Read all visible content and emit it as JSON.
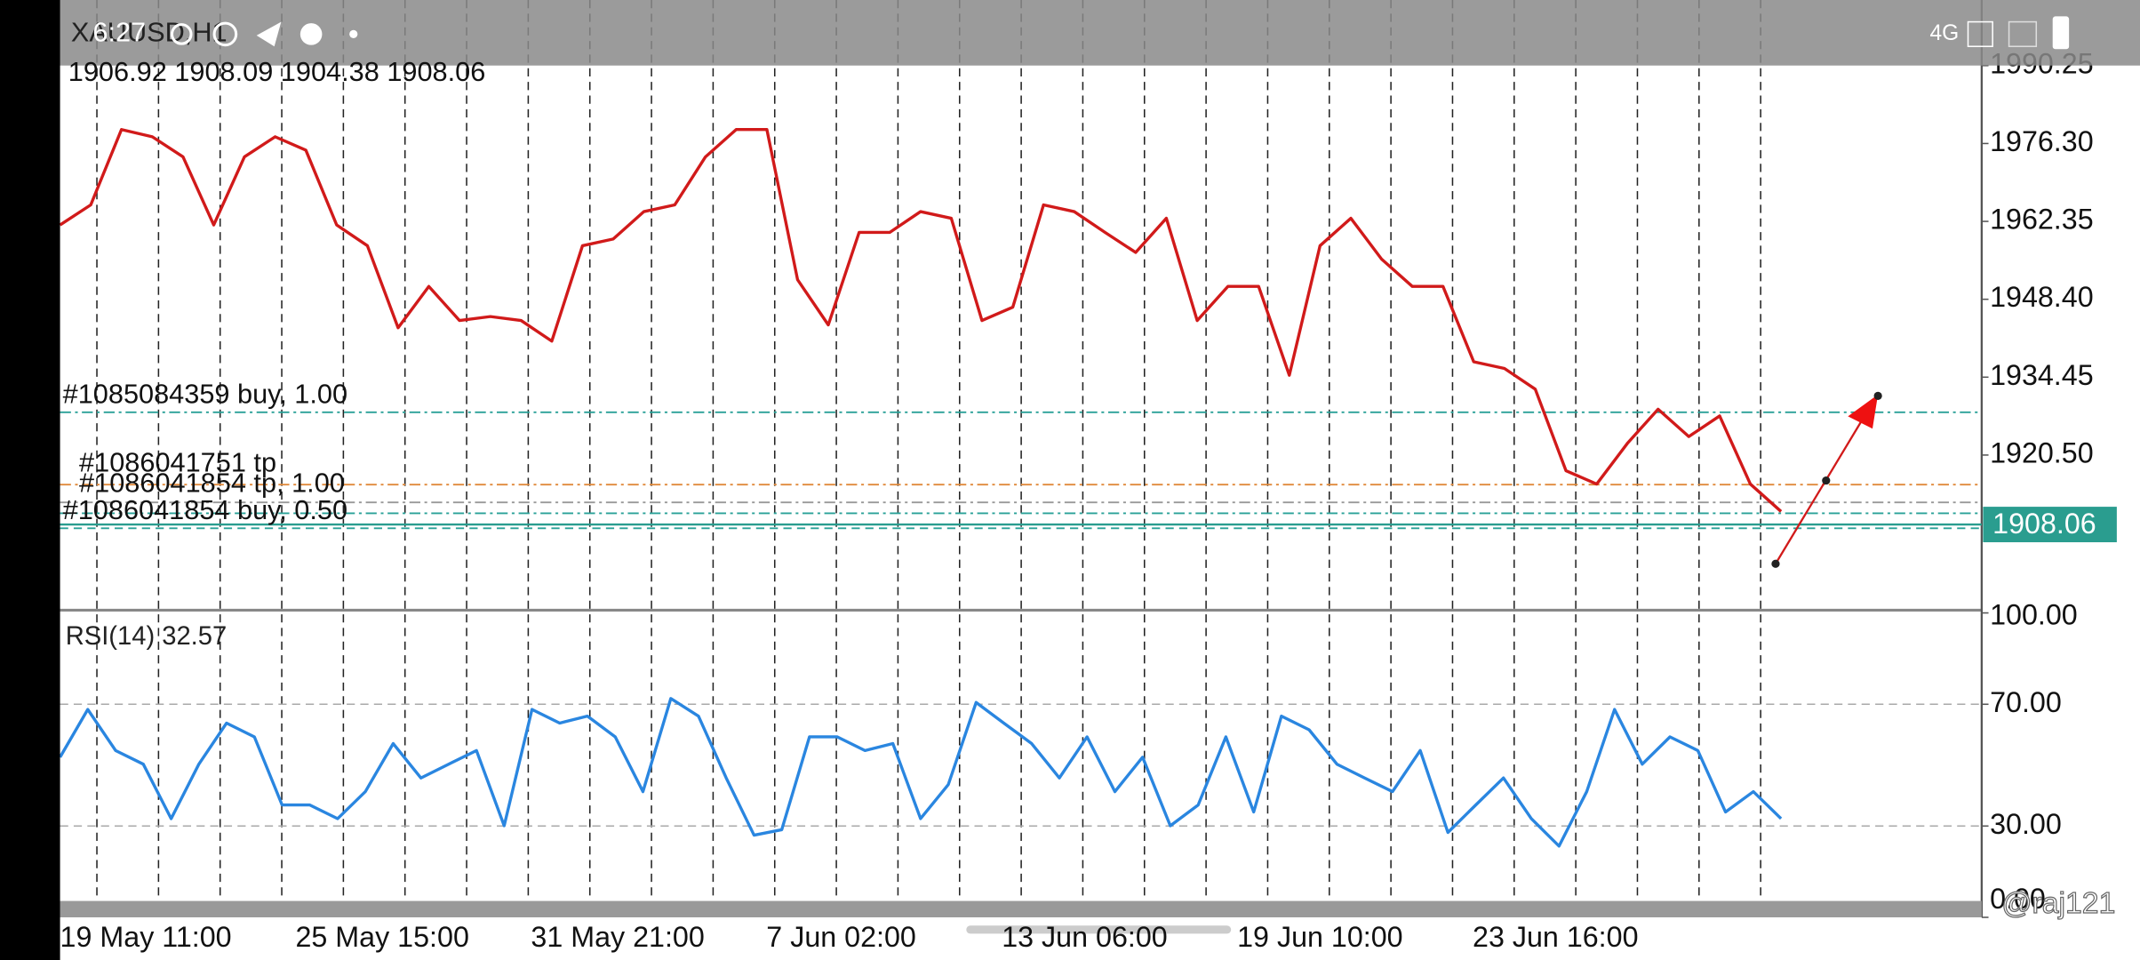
{
  "status_bar": {
    "time": "6:27",
    "network": "4G"
  },
  "header": {
    "symbol": "XAUUSD,H1",
    "ohlc": "1906.92 1908.09 1904.38 1908.06"
  },
  "orders": [
    "#1085084359 buy, 1.00",
    "#1086041751 tp",
    "#1086041854 tp, 1.00",
    "#1086041854 buy, 0.50"
  ],
  "watermark": "@raj121",
  "xticks": [
    "19 May 11:00",
    "25 May 15:00",
    "31 May 21:00",
    "7 Jun 02:00",
    "13 Jun 06:00",
    "19 Jun 10:00",
    "23 Jun 16:00"
  ],
  "chart_data": [
    {
      "type": "line",
      "current_price": 1908.06,
      "ylim": [
        1893.2,
        1991
      ],
      "yticks": [
        1990.25,
        {
          "value": 1976.3,
          "label": "1976.30"
        },
        1962.35,
        {
          "value": 1948.4,
          "label": "1948.40"
        },
        1934.45,
        {
          "value": 1920.5,
          "label": "1920.50"
        }
      ],
      "series": [
        {
          "color": "#d11a1a",
          "values": [
            1961.7,
            1965.3,
            1978.8,
            1977.5,
            1973.9,
            1961.7,
            1973.9,
            1977.5,
            1975.1,
            1961.7,
            1958.0,
            1943.3,
            1950.7,
            1944.6,
            1945.3,
            1944.6,
            1940.9,
            1958.0,
            1959.2,
            1964.1,
            1965.3,
            1973.9,
            1978.8,
            1978.8,
            1951.9,
            1943.8,
            1960.4,
            1960.4,
            1964.1,
            1962.9,
            1944.6,
            1947.0,
            1965.3,
            1964.1,
            1960.4,
            1956.8,
            1962.9,
            1944.6,
            1950.7,
            1950.7,
            1934.8,
            1958.0,
            1962.9,
            1955.6,
            1950.7,
            1950.7,
            1937.2,
            1936.0,
            1932.3,
            1917.7,
            1915.3,
            1922.6,
            1928.7,
            1923.8,
            1927.5,
            1915.3,
            1910.4
          ]
        }
      ]
    },
    {
      "type": "line",
      "title": "RSI(14) 32.57",
      "ylim": [
        0,
        100
      ],
      "yticks": [
        {
          "value": 100,
          "label": "100.00"
        },
        {
          "value": 70,
          "label": "70.00"
        },
        {
          "value": 30,
          "label": "30.00"
        },
        {
          "value": 0,
          "label": "0.00"
        }
      ],
      "grid": true,
      "series": [
        {
          "color": "#2a86e0",
          "values": [
            52.6,
            68.3,
            54.8,
            50.3,
            32.4,
            50.3,
            63.8,
            59.3,
            36.9,
            36.9,
            32.4,
            41.3,
            57.1,
            45.8,
            50.3,
            54.8,
            30.1,
            68.3,
            63.8,
            66.1,
            59.3,
            41.3,
            71.9,
            66.1,
            45.8,
            27.0,
            28.8,
            59.3,
            59.3,
            54.8,
            57.1,
            32.4,
            43.6,
            70.6,
            63.8,
            57.1,
            45.8,
            59.3,
            41.3,
            52.6,
            30.1,
            36.9,
            59.3,
            34.6,
            66.1,
            61.6,
            50.3,
            45.8,
            41.3,
            54.8,
            27.9,
            36.9,
            45.8,
            32.4,
            23.4,
            41.3,
            68.3,
            50.3,
            59.3,
            54.8,
            34.6,
            41.3,
            32.4
          ]
        }
      ]
    }
  ]
}
